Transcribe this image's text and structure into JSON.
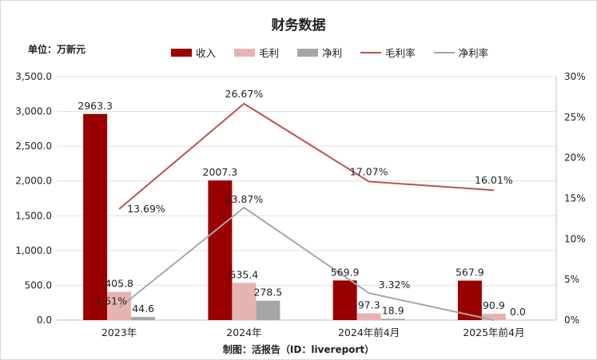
{
  "title": "财务数据",
  "unit_label": "单位：万新元",
  "footer": "制图：活报告（ID：livereport）",
  "colors": {
    "revenue": "#990000",
    "gross_profit": "#e6b3b3",
    "net_profit": "#a6a6a6",
    "gross_margin": "#c0504d",
    "net_margin": "#a6a6a6",
    "grid": "#e0e0e0",
    "axis_text": "#222222"
  },
  "chart_data": {
    "type": "bar",
    "categories": [
      "2023年",
      "2024年",
      "2024年前4月",
      "2025年前4月"
    ],
    "series": [
      {
        "name": "收入",
        "type": "bar",
        "axis": "left",
        "values": [
          2963.3,
          2007.3,
          569.9,
          567.9
        ],
        "labels": [
          "2963.3",
          "2007.3",
          "569.9",
          "567.9"
        ]
      },
      {
        "name": "毛利",
        "type": "bar",
        "axis": "left",
        "values": [
          405.8,
          535.4,
          97.3,
          90.9
        ],
        "labels": [
          "405.8",
          "535.4",
          "97.3",
          "90.9"
        ]
      },
      {
        "name": "净利",
        "type": "bar",
        "axis": "left",
        "values": [
          44.6,
          278.5,
          18.9,
          0.0
        ],
        "labels": [
          "44.6",
          "278.5",
          "18.9",
          "0.0"
        ]
      },
      {
        "name": "毛利率",
        "type": "line",
        "axis": "right",
        "values": [
          13.69,
          26.67,
          17.07,
          16.01
        ],
        "labels": [
          "13.69%",
          "26.67%",
          "17.07%",
          "16.01%"
        ]
      },
      {
        "name": "净利率",
        "type": "line",
        "axis": "right",
        "values": [
          1.51,
          13.87,
          3.32,
          0.0
        ],
        "labels": [
          "1.51%",
          "13.87%",
          "3.32%",
          ""
        ]
      }
    ],
    "y_left": {
      "lim": [
        0,
        3500
      ],
      "ticks": [
        0,
        500,
        1000,
        1500,
        2000,
        2500,
        3000,
        3500
      ],
      "tick_labels": [
        "0.0",
        "500.0",
        "1,000.0",
        "1,500.0",
        "2,000.0",
        "2,500.0",
        "3,000.0",
        "3,500.0"
      ]
    },
    "y_right": {
      "lim": [
        0,
        30
      ],
      "ticks": [
        0,
        5,
        10,
        15,
        20,
        25,
        30
      ],
      "tick_labels": [
        "0%",
        "5%",
        "10%",
        "15%",
        "20%",
        "25%",
        "30%"
      ]
    },
    "grid": true,
    "legend_position": "top"
  }
}
